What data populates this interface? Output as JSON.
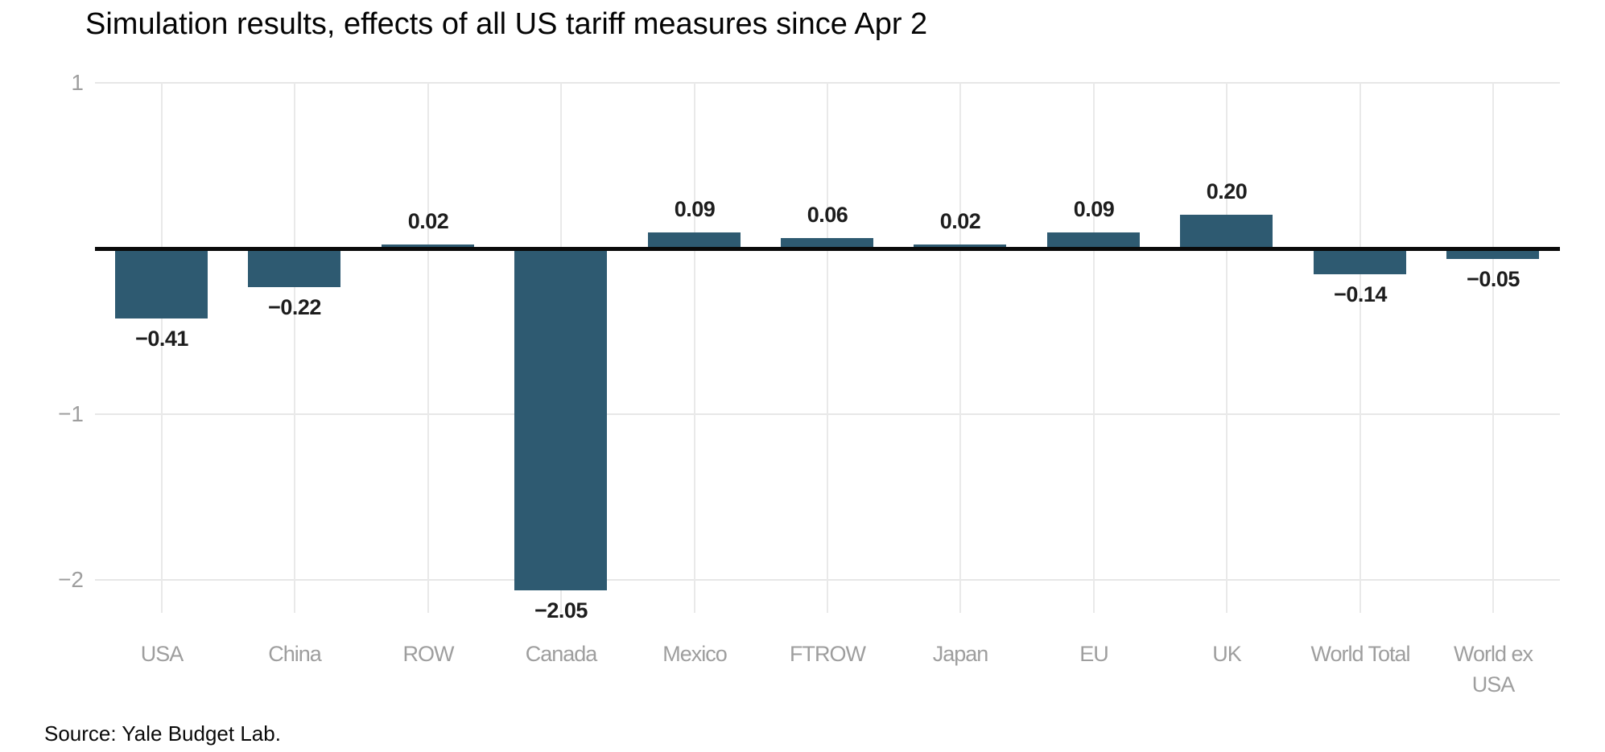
{
  "title": "Simulation results, effects of all US tariff measures since Apr 2",
  "source_note": "Source: Yale Budget Lab.",
  "colors": {
    "background": "#ffffff",
    "bar": "#2e5a71",
    "zero_axis": "#0a0a0a",
    "gridline": "#e7e7e7",
    "tick_label": "#9e9e9e",
    "category_label": "#9e9e9e",
    "value_label": "#1d1d1d",
    "title_text": "#050505"
  },
  "chart_data": {
    "type": "bar",
    "title": "Simulation results, effects of all US tariff measures since Apr 2",
    "xlabel": "",
    "ylabel": "",
    "categories": [
      "USA",
      "China",
      "ROW",
      "Canada",
      "Mexico",
      "FTROW",
      "Japan",
      "EU",
      "UK",
      "World Total",
      "World ex USA"
    ],
    "values": [
      -0.41,
      -0.22,
      0.02,
      -2.05,
      0.09,
      0.06,
      0.02,
      0.09,
      0.2,
      -0.14,
      -0.05
    ],
    "value_labels": [
      "−0.41",
      "−0.22",
      "0.02",
      "−2.05",
      "0.09",
      "0.06",
      "0.02",
      "0.09",
      "0.20",
      "−0.14",
      "−0.05"
    ],
    "y_ticks": [
      1,
      -1,
      -2
    ],
    "y_tick_labels": [
      "1",
      "−1",
      "−2"
    ],
    "ylim": [
      -2.2,
      1
    ],
    "grid": true,
    "legend": false,
    "bar_color": "#2e5a71",
    "annotations": [
      "Source: Yale Budget Lab."
    ]
  }
}
